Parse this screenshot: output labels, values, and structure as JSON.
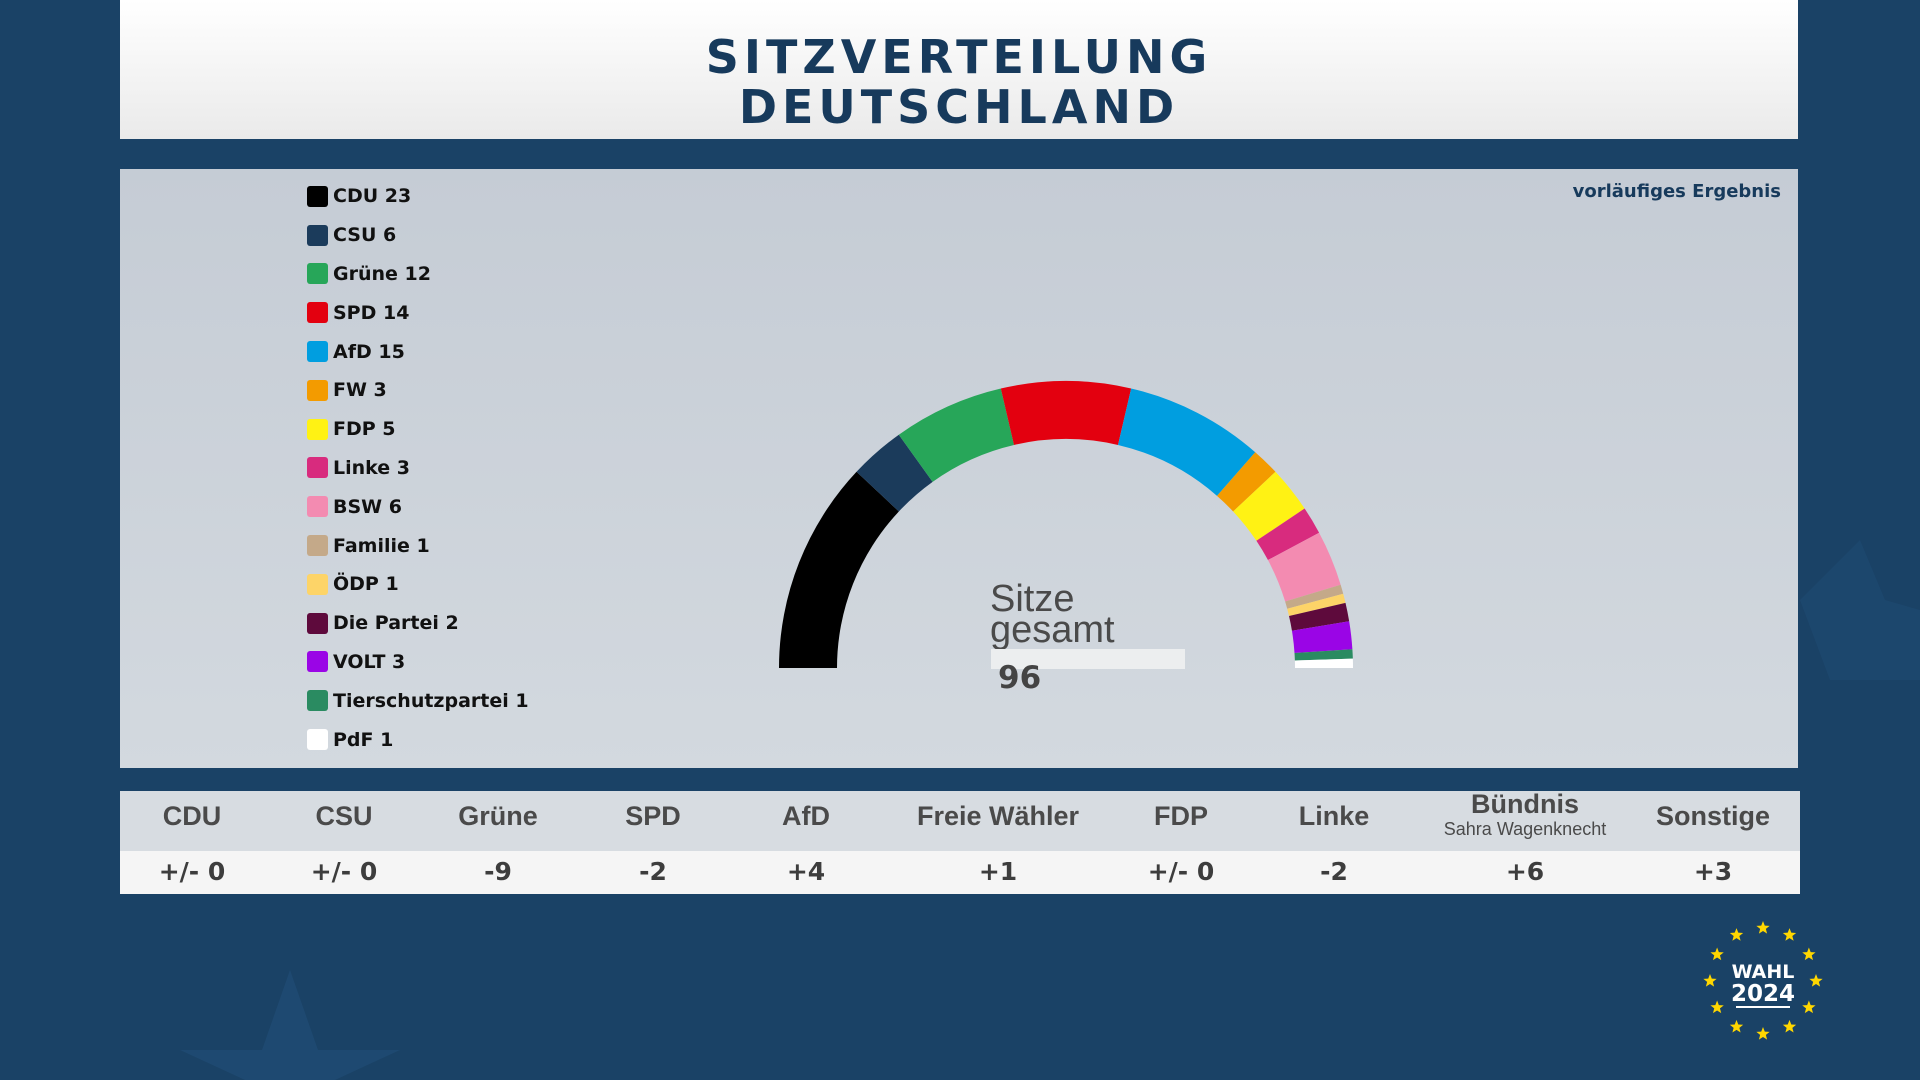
{
  "title": {
    "line1": "SITZVERTEILUNG",
    "line2": "DEUTSCHLAND"
  },
  "subtitle": "vorläufiges Ergebnis",
  "center": {
    "label_line1": "Sitze",
    "label_line2": "gesamt",
    "total": "96"
  },
  "chart_data": {
    "type": "pie",
    "layout": "hemicycle",
    "title": "SITZVERTEILUNG DEUTSCHLAND",
    "total_seats": 96,
    "series": [
      {
        "name": "CDU",
        "label": "CDU 23",
        "value": 23,
        "color": "#000000"
      },
      {
        "name": "CSU",
        "label": "CSU 6",
        "value": 6,
        "color": "#1b3b5b"
      },
      {
        "name": "Grüne",
        "label": "Grüne 12",
        "value": 12,
        "color": "#27a659"
      },
      {
        "name": "SPD",
        "label": "SPD 14",
        "value": 14,
        "color": "#e3000f"
      },
      {
        "name": "AfD",
        "label": "AfD 15",
        "value": 15,
        "color": "#009ee0"
      },
      {
        "name": "FW",
        "label": "FW 3",
        "value": 3,
        "color": "#f39b00"
      },
      {
        "name": "FDP",
        "label": "FDP 5",
        "value": 5,
        "color": "#fff214"
      },
      {
        "name": "Linke",
        "label": "Linke 3",
        "value": 3,
        "color": "#d82b7e"
      },
      {
        "name": "BSW",
        "label": "BSW 6",
        "value": 6,
        "color": "#f38bb1"
      },
      {
        "name": "Familie",
        "label": "Familie 1",
        "value": 1,
        "color": "#c4a989"
      },
      {
        "name": "ÖDP",
        "label": "ÖDP 1",
        "value": 1,
        "color": "#fdd468"
      },
      {
        "name": "Die Partei",
        "label": "Die Partei 2",
        "value": 2,
        "color": "#5e0a3c"
      },
      {
        "name": "VOLT",
        "label": "VOLT 3",
        "value": 3,
        "color": "#9a05e6"
      },
      {
        "name": "Tierschutzpartei",
        "label": "Tierschutzpartei 1",
        "value": 1,
        "color": "#2a8b61"
      },
      {
        "name": "PdF",
        "label": "PdF 1",
        "value": 1,
        "color": "#ffffff"
      }
    ]
  },
  "changes": [
    {
      "party": "CDU",
      "sub": "",
      "delta": "+/- 0"
    },
    {
      "party": "CSU",
      "sub": "",
      "delta": "+/- 0"
    },
    {
      "party": "Grüne",
      "sub": "",
      "delta": "-9"
    },
    {
      "party": "SPD",
      "sub": "",
      "delta": "-2"
    },
    {
      "party": "AfD",
      "sub": "",
      "delta": "+4"
    },
    {
      "party": "Freie Wähler",
      "sub": "",
      "delta": "+1"
    },
    {
      "party": "FDP",
      "sub": "",
      "delta": "+/- 0"
    },
    {
      "party": "Linke",
      "sub": "",
      "delta": "-2"
    },
    {
      "party": "Bündnis",
      "sub": "Sahra Wagenknecht",
      "delta": "+6"
    },
    {
      "party": "Sonstige",
      "sub": "",
      "delta": "+3"
    }
  ],
  "logo": {
    "line1": "WAHL",
    "line2": "2024",
    "star_color": "#ffd700"
  }
}
